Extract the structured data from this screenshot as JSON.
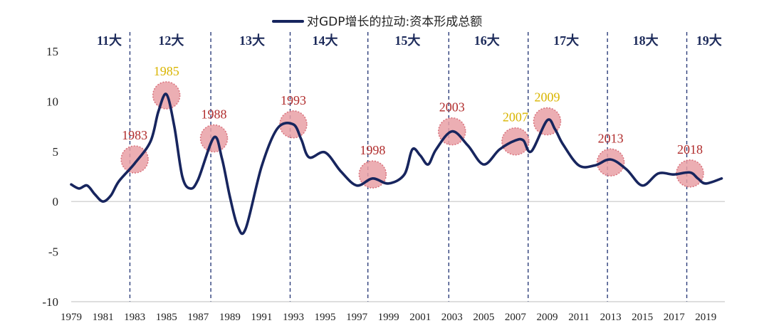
{
  "chart_data": {
    "type": "line",
    "legend": "对GDP增长的拉动:资本形成总额",
    "legend_position": "top-center",
    "ylim": [
      -10,
      15
    ],
    "yticks": [
      15,
      10,
      5,
      0,
      -5,
      -10
    ],
    "xlim": [
      1979,
      2020.2
    ],
    "xticks": [
      "1979",
      "1981",
      "1983",
      "1985",
      "1987",
      "1989",
      "1991",
      "1993",
      "1995",
      "1997",
      "1999",
      "2001",
      "2003",
      "2005",
      "2007",
      "2009",
      "2011",
      "2013",
      "2015",
      "2017",
      "2019"
    ],
    "series": [
      {
        "name": "对GDP增长的拉动:资本形成总额",
        "color": "#17255e",
        "points": [
          [
            1979,
            1.7
          ],
          [
            1979.5,
            1.3
          ],
          [
            1980,
            1.6
          ],
          [
            1980.5,
            0.7
          ],
          [
            1981,
            0.0
          ],
          [
            1981.5,
            0.6
          ],
          [
            1982,
            2.0
          ],
          [
            1983,
            3.8
          ],
          [
            1984,
            6.0
          ],
          [
            1984.5,
            9.0
          ],
          [
            1985,
            10.7
          ],
          [
            1985.5,
            7.5
          ],
          [
            1986,
            2.5
          ],
          [
            1986.5,
            1.3
          ],
          [
            1987,
            2.2
          ],
          [
            1988,
            6.4
          ],
          [
            1988.5,
            4.3
          ],
          [
            1989,
            0.5
          ],
          [
            1989.5,
            -2.5
          ],
          [
            1990,
            -2.7
          ],
          [
            1991,
            3.5
          ],
          [
            1992,
            7.3
          ],
          [
            1993,
            7.7
          ],
          [
            1993.5,
            6.2
          ],
          [
            1994,
            4.4
          ],
          [
            1995,
            4.9
          ],
          [
            1996,
            3.0
          ],
          [
            1997,
            1.6
          ],
          [
            1998,
            2.3
          ],
          [
            1999,
            1.8
          ],
          [
            2000,
            2.7
          ],
          [
            2000.5,
            5.2
          ],
          [
            2001,
            4.6
          ],
          [
            2001.5,
            3.7
          ],
          [
            2002,
            5.2
          ],
          [
            2003,
            7.0
          ],
          [
            2004,
            5.6
          ],
          [
            2005,
            3.7
          ],
          [
            2006,
            5.2
          ],
          [
            2007,
            6.1
          ],
          [
            2007.5,
            6.1
          ],
          [
            2008,
            5.0
          ],
          [
            2009,
            8.1
          ],
          [
            2009.5,
            7.2
          ],
          [
            2010,
            5.7
          ],
          [
            2011,
            3.6
          ],
          [
            2012,
            3.6
          ],
          [
            2013,
            4.2
          ],
          [
            2014,
            3.2
          ],
          [
            2015,
            1.6
          ],
          [
            2016,
            2.8
          ],
          [
            2017,
            2.7
          ],
          [
            2018,
            2.9
          ],
          [
            2018.5,
            2.3
          ],
          [
            2019,
            1.8
          ],
          [
            2020,
            2.3
          ]
        ]
      }
    ],
    "congress_boundaries": [
      1982.7,
      1987.8,
      1992.8,
      1997.7,
      2002.8,
      2007.8,
      2012.8,
      2017.8
    ],
    "congress_labels": [
      {
        "label": "11大",
        "x": 1981.4
      },
      {
        "label": "12大",
        "x": 1985.3
      },
      {
        "label": "13大",
        "x": 1990.4
      },
      {
        "label": "14大",
        "x": 1995.0
      },
      {
        "label": "15大",
        "x": 2000.2
      },
      {
        "label": "16大",
        "x": 2005.2
      },
      {
        "label": "17大",
        "x": 2010.2
      },
      {
        "label": "18大",
        "x": 2015.2
      },
      {
        "label": "19大",
        "x": 2019.2
      }
    ],
    "highlights": [
      {
        "year": "1983",
        "x": 1983.0,
        "y": 4.2,
        "label_color": "#b02b2b"
      },
      {
        "year": "1985",
        "x": 1985.0,
        "y": 10.6,
        "label_color": "#d9b500"
      },
      {
        "year": "1988",
        "x": 1988.0,
        "y": 6.3,
        "label_color": "#b02b2b"
      },
      {
        "year": "1993",
        "x": 1993.0,
        "y": 7.7,
        "label_color": "#b02b2b"
      },
      {
        "year": "1998",
        "x": 1998.0,
        "y": 2.7,
        "label_color": "#b02b2b"
      },
      {
        "year": "2003",
        "x": 2003.0,
        "y": 7.0,
        "label_color": "#b02b2b"
      },
      {
        "year": "2007",
        "x": 2007.0,
        "y": 6.0,
        "label_color": "#d9b500"
      },
      {
        "year": "2009",
        "x": 2009.0,
        "y": 8.0,
        "label_color": "#d9b500"
      },
      {
        "year": "2013",
        "x": 2013.0,
        "y": 3.9,
        "label_color": "#b02b2b"
      },
      {
        "year": "2018",
        "x": 2018.0,
        "y": 2.8,
        "label_color": "#b02b2b"
      }
    ],
    "colors": {
      "line": "#17255e",
      "bubble_fill": "#e9a0a6",
      "bubble_stroke": "#d9727c",
      "boundary": "#2c3d7a",
      "axis": "#c9c9c9"
    }
  }
}
